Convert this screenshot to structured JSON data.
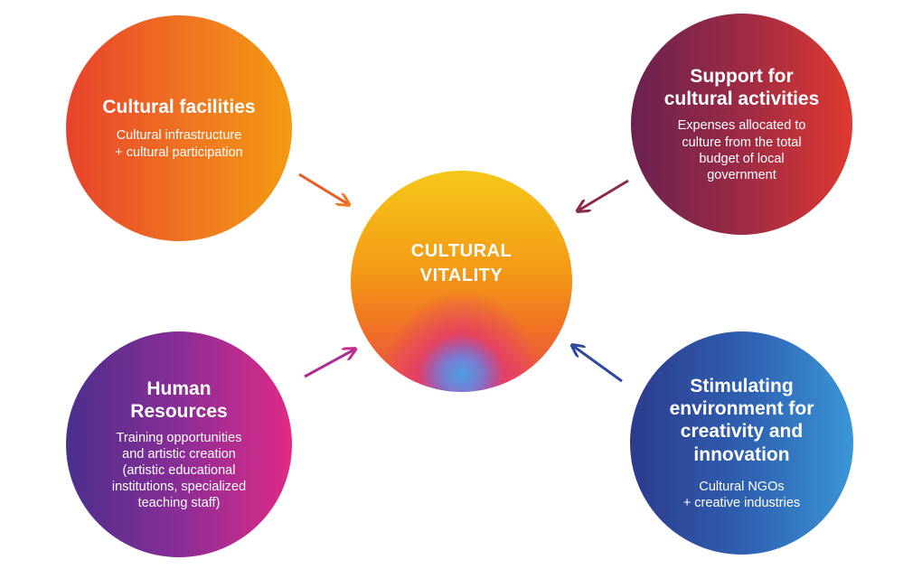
{
  "center": {
    "title_line1": "CULTURAL",
    "title_line2": "VITALITY"
  },
  "nodes": [
    {
      "title_lines": [
        "Cultural facilities"
      ],
      "desc_lines": [
        "Cultural infrastructure",
        "+ cultural participation"
      ],
      "colors": [
        "#e8422c",
        "#f39a12"
      ]
    },
    {
      "title_lines": [
        "Support for",
        "cultural activities"
      ],
      "desc_lines": [
        "Expenses allocated to",
        "culture from the total",
        "budget of local",
        "government"
      ],
      "colors": [
        "#6a2150",
        "#e0392f"
      ]
    },
    {
      "title_lines": [
        "Human",
        "Resources"
      ],
      "desc_lines": [
        "Training opportunities",
        "and artistic creation",
        "(artistic educational",
        "institutions, specialized",
        "teaching staff)"
      ],
      "colors": [
        "#4b2f8c",
        "#e02a86"
      ]
    },
    {
      "title_lines": [
        "Stimulating",
        "environment for",
        "creativity and",
        "innovation"
      ],
      "desc_lines": [
        "Cultural NGOs",
        "+ creative industries"
      ],
      "colors": [
        "#2d3a8c",
        "#3a96d6"
      ]
    }
  ]
}
